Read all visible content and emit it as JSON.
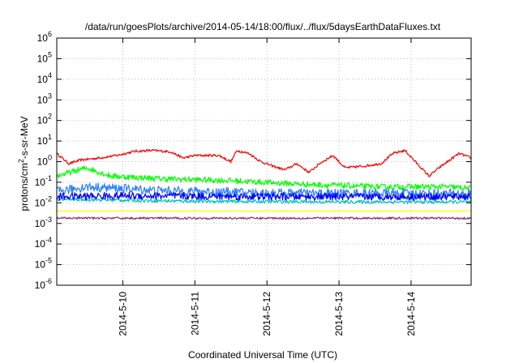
{
  "chart_data": {
    "type": "line",
    "title": "/data/run/goesPlots/archive/2014-05-14/18:00/flux/../flux/5daysEarthDataFluxes.txt",
    "xlabel": "Coordinated Universal Time (UTC)",
    "ylabel_main": "protons/cm",
    "ylabel_sup": "2",
    "ylabel_rest": "-s-sr-MeV",
    "y_scale": "log",
    "ylim": [
      1e-06,
      1000000.0
    ],
    "xlim": [
      "2014-05-09T02:00",
      "2014-05-14T20:00"
    ],
    "grid": true,
    "legend": "none",
    "y_ticks": [
      {
        "base": "10",
        "exp": "-6",
        "value": 1e-06
      },
      {
        "base": "10",
        "exp": "-5",
        "value": 1e-05
      },
      {
        "base": "10",
        "exp": "-4",
        "value": 0.0001
      },
      {
        "base": "10",
        "exp": "-3",
        "value": 0.001
      },
      {
        "base": "10",
        "exp": "-2",
        "value": 0.01
      },
      {
        "base": "10",
        "exp": "-1",
        "value": 0.1
      },
      {
        "base": "10",
        "exp": "0",
        "value": 1.0
      },
      {
        "base": "10",
        "exp": "1",
        "value": 10.0
      },
      {
        "base": "10",
        "exp": "2",
        "value": 100.0
      },
      {
        "base": "10",
        "exp": "3",
        "value": 1000.0
      },
      {
        "base": "10",
        "exp": "4",
        "value": 10000.0
      },
      {
        "base": "10",
        "exp": "5",
        "value": 100000.0
      },
      {
        "base": "10",
        "exp": "6",
        "value": 1000000.0
      }
    ],
    "x_ticks": [
      {
        "label": "2014-5-10",
        "value": "2014-05-10T00:00"
      },
      {
        "label": "2014-5-11",
        "value": "2014-05-11T00:00"
      },
      {
        "label": "2014-5-12",
        "value": "2014-05-12T00:00"
      },
      {
        "label": "2014-5-13",
        "value": "2014-05-13T00:00"
      },
      {
        "label": "2014-5-14",
        "value": "2014-05-14T00:00"
      }
    ],
    "series": [
      {
        "color": "#ff0000",
        "noise": 0.06,
        "points": [
          [
            "2014-05-09T02:00",
            2.5
          ],
          [
            "2014-05-09T06:00",
            0.8
          ],
          [
            "2014-05-09T10:00",
            1.2
          ],
          [
            "2014-05-09T16:00",
            1.5
          ],
          [
            "2014-05-09T22:00",
            2.0
          ],
          [
            "2014-05-10T04:00",
            3.2
          ],
          [
            "2014-05-10T10:00",
            3.5
          ],
          [
            "2014-05-10T16:00",
            3.0
          ],
          [
            "2014-05-10T20:00",
            1.5
          ],
          [
            "2014-05-11T00:00",
            2.0
          ],
          [
            "2014-05-11T08:00",
            2.0
          ],
          [
            "2014-05-11T12:00",
            1.0
          ],
          [
            "2014-05-11T14:00",
            3.5
          ],
          [
            "2014-05-11T18:00",
            2.5
          ],
          [
            "2014-05-11T22:00",
            1.0
          ],
          [
            "2014-05-12T02:00",
            0.6
          ],
          [
            "2014-05-12T06:00",
            0.4
          ],
          [
            "2014-05-12T10:00",
            0.8
          ],
          [
            "2014-05-12T14:00",
            0.3
          ],
          [
            "2014-05-12T18:00",
            0.9
          ],
          [
            "2014-05-12T22:00",
            2.0
          ],
          [
            "2014-05-13T02:00",
            0.5
          ],
          [
            "2014-05-13T08:00",
            0.6
          ],
          [
            "2014-05-13T14:00",
            0.8
          ],
          [
            "2014-05-13T18:00",
            2.5
          ],
          [
            "2014-05-13T22:00",
            3.5
          ],
          [
            "2014-05-14T02:00",
            0.8
          ],
          [
            "2014-05-14T06:00",
            0.2
          ],
          [
            "2014-05-14T10:00",
            0.6
          ],
          [
            "2014-05-14T16:00",
            2.5
          ],
          [
            "2014-05-14T20:00",
            1.5
          ]
        ]
      },
      {
        "color": "#00ff00",
        "noise": 0.14,
        "points": [
          [
            "2014-05-09T02:00",
            0.2
          ],
          [
            "2014-05-09T12:00",
            0.5
          ],
          [
            "2014-05-09T20:00",
            0.2
          ],
          [
            "2014-05-10T12:00",
            0.15
          ],
          [
            "2014-05-11T12:00",
            0.12
          ],
          [
            "2014-05-12T12:00",
            0.08
          ],
          [
            "2014-05-13T12:00",
            0.06
          ],
          [
            "2014-05-14T12:00",
            0.06
          ],
          [
            "2014-05-14T20:00",
            0.05
          ]
        ]
      },
      {
        "color": "#00bfbf",
        "noise": 0.08,
        "points": [
          [
            "2014-05-09T02:00",
            0.015
          ],
          [
            "2014-05-11T00:00",
            0.012
          ],
          [
            "2014-05-13T00:00",
            0.011
          ],
          [
            "2014-05-14T20:00",
            0.011
          ]
        ]
      },
      {
        "color": "#2f7fff",
        "noise": 0.22,
        "points": [
          [
            "2014-05-09T02:00",
            0.035
          ],
          [
            "2014-05-09T12:00",
            0.06
          ],
          [
            "2014-05-10T12:00",
            0.04
          ],
          [
            "2014-05-12T00:00",
            0.03
          ],
          [
            "2014-05-14T20:00",
            0.028
          ]
        ]
      },
      {
        "color": "#0000ff",
        "noise": 0.18,
        "points": [
          [
            "2014-05-09T02:00",
            0.02
          ],
          [
            "2014-05-10T00:00",
            0.022
          ],
          [
            "2014-05-12T00:00",
            0.02
          ],
          [
            "2014-05-14T20:00",
            0.02
          ]
        ]
      },
      {
        "color": "#ffff00",
        "noise": 0.03,
        "points": [
          [
            "2014-05-09T02:00",
            0.004
          ],
          [
            "2014-05-14T20:00",
            0.004
          ]
        ]
      },
      {
        "color": "#8b2a6b",
        "noise": 0.05,
        "points": [
          [
            "2014-05-09T02:00",
            0.0018
          ],
          [
            "2014-05-14T20:00",
            0.0018
          ]
        ]
      }
    ]
  }
}
